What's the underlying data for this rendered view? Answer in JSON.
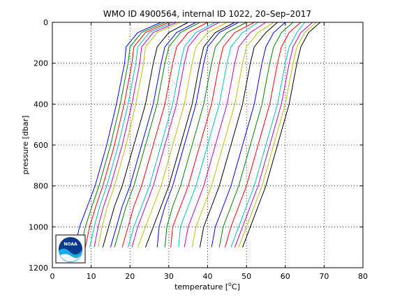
{
  "chart_data": {
    "type": "line",
    "title": "WMO ID 4900564, internal ID 1022, 20–Sep–2017",
    "xlabel": "temperature [°C]",
    "ylabel": "pressure [dbar]",
    "xlim": [
      0,
      80
    ],
    "ylim": [
      1200,
      0
    ],
    "y_reversed": true,
    "grid": true,
    "x_ticks": [
      0,
      10,
      20,
      30,
      40,
      50,
      60,
      70,
      80
    ],
    "y_ticks": [
      0,
      200,
      400,
      600,
      800,
      1000,
      1200
    ],
    "x_tick_labels": [
      "0",
      "10",
      "20",
      "30",
      "40",
      "50",
      "60",
      "70",
      "80"
    ],
    "y_tick_labels": [
      "0",
      "200",
      "400",
      "600",
      "800",
      "1000",
      "1200"
    ],
    "logo_text": "NOAA",
    "series": [
      {
        "color": "#0000ff",
        "values": [
          [
            28,
            0
          ],
          [
            22,
            50
          ],
          [
            19,
            120
          ],
          [
            18.6,
            200
          ],
          [
            16.5,
            400
          ],
          [
            14,
            600
          ],
          [
            11,
            800
          ],
          [
            9,
            900
          ],
          [
            7,
            1000
          ],
          [
            5.8,
            1100
          ]
        ]
      },
      {
        "color": "#008000",
        "values": [
          [
            29,
            0
          ],
          [
            23,
            50
          ],
          [
            20,
            120
          ],
          [
            19.5,
            200
          ],
          [
            17.5,
            400
          ],
          [
            15,
            600
          ],
          [
            12,
            800
          ],
          [
            10.2,
            900
          ],
          [
            8.5,
            1000
          ],
          [
            7.3,
            1100
          ]
        ]
      },
      {
        "color": "#ff0000",
        "values": [
          [
            30,
            0
          ],
          [
            24,
            50
          ],
          [
            21,
            120
          ],
          [
            20.5,
            200
          ],
          [
            18.5,
            400
          ],
          [
            16,
            600
          ],
          [
            13,
            800
          ],
          [
            11.2,
            900
          ],
          [
            9.6,
            1000
          ],
          [
            8.5,
            1100
          ]
        ]
      },
      {
        "color": "#00bfbf",
        "values": [
          [
            31,
            0
          ],
          [
            25,
            50
          ],
          [
            22,
            120
          ],
          [
            21.5,
            200
          ],
          [
            19.5,
            400
          ],
          [
            17,
            600
          ],
          [
            14,
            800
          ],
          [
            12.2,
            900
          ],
          [
            10.8,
            1000
          ],
          [
            9.6,
            1100
          ]
        ]
      },
      {
        "color": "#bf00bf",
        "values": [
          [
            32,
            0
          ],
          [
            26,
            50
          ],
          [
            23,
            120
          ],
          [
            22.5,
            200
          ],
          [
            20.5,
            400
          ],
          [
            18,
            600
          ],
          [
            15,
            800
          ],
          [
            13.2,
            900
          ],
          [
            11.8,
            1000
          ],
          [
            10.8,
            1100
          ]
        ]
      },
      {
        "color": "#bfbf00",
        "values": [
          [
            33,
            0
          ],
          [
            27,
            50
          ],
          [
            24,
            120
          ],
          [
            23.5,
            200
          ],
          [
            21.5,
            400
          ],
          [
            19,
            600
          ],
          [
            16,
            800
          ],
          [
            14.2,
            900
          ],
          [
            12.8,
            1000
          ],
          [
            11.8,
            1100
          ]
        ]
      },
      {
        "color": "#000000",
        "values": [
          [
            35,
            0
          ],
          [
            30,
            50
          ],
          [
            27,
            120
          ],
          [
            26,
            200
          ],
          [
            24,
            400
          ],
          [
            21,
            600
          ],
          [
            18,
            800
          ],
          [
            16,
            900
          ],
          [
            14.5,
            1000
          ],
          [
            13,
            1100
          ]
        ]
      },
      {
        "color": "#0000ff",
        "values": [
          [
            37,
            0
          ],
          [
            32,
            50
          ],
          [
            29,
            120
          ],
          [
            28,
            200
          ],
          [
            26,
            400
          ],
          [
            23,
            600
          ],
          [
            20,
            800
          ],
          [
            18,
            900
          ],
          [
            16.5,
            1000
          ],
          [
            15,
            1100
          ]
        ]
      },
      {
        "color": "#008000",
        "values": [
          [
            38,
            0
          ],
          [
            33,
            50
          ],
          [
            30,
            120
          ],
          [
            29,
            200
          ],
          [
            27,
            400
          ],
          [
            24,
            600
          ],
          [
            21,
            800
          ],
          [
            19,
            900
          ],
          [
            17.5,
            1000
          ],
          [
            16,
            1100
          ]
        ]
      },
      {
        "color": "#ff0000",
        "values": [
          [
            40,
            0
          ],
          [
            35,
            50
          ],
          [
            32,
            120
          ],
          [
            31,
            200
          ],
          [
            29,
            400
          ],
          [
            26,
            600
          ],
          [
            23,
            800
          ],
          [
            21,
            900
          ],
          [
            19.5,
            1000
          ],
          [
            18,
            1100
          ]
        ]
      },
      {
        "color": "#00bfbf",
        "values": [
          [
            42,
            0
          ],
          [
            37,
            50
          ],
          [
            34,
            120
          ],
          [
            33,
            200
          ],
          [
            31,
            400
          ],
          [
            28,
            600
          ],
          [
            25,
            800
          ],
          [
            23,
            900
          ],
          [
            21,
            1000
          ],
          [
            19.5,
            1100
          ]
        ]
      },
      {
        "color": "#bf00bf",
        "values": [
          [
            43,
            0
          ],
          [
            38,
            50
          ],
          [
            35,
            120
          ],
          [
            34,
            200
          ],
          [
            32,
            400
          ],
          [
            29,
            600
          ],
          [
            26,
            800
          ],
          [
            24,
            900
          ],
          [
            22,
            1000
          ],
          [
            20.5,
            1100
          ]
        ]
      },
      {
        "color": "#bfbf00",
        "values": [
          [
            45,
            0
          ],
          [
            40,
            50
          ],
          [
            37,
            120
          ],
          [
            36,
            200
          ],
          [
            34,
            400
          ],
          [
            31,
            600
          ],
          [
            28,
            800
          ],
          [
            26,
            900
          ],
          [
            24,
            1000
          ],
          [
            22,
            1100
          ]
        ]
      },
      {
        "color": "#000000",
        "values": [
          [
            47,
            0
          ],
          [
            42,
            50
          ],
          [
            39,
            120
          ],
          [
            38,
            200
          ],
          [
            36,
            400
          ],
          [
            33,
            600
          ],
          [
            30,
            800
          ],
          [
            28,
            900
          ],
          [
            26,
            1000
          ],
          [
            24,
            1100
          ]
        ]
      },
      {
        "color": "#0000ff",
        "values": [
          [
            48,
            0
          ],
          [
            43,
            50
          ],
          [
            40,
            120
          ],
          [
            39,
            200
          ],
          [
            37,
            400
          ],
          [
            34,
            600
          ],
          [
            31,
            800
          ],
          [
            29,
            900
          ],
          [
            27.5,
            1000
          ],
          [
            27,
            1100
          ]
        ]
      },
      {
        "color": "#008000",
        "values": [
          [
            50,
            0
          ],
          [
            45,
            50
          ],
          [
            42,
            120
          ],
          [
            41,
            200
          ],
          [
            39,
            400
          ],
          [
            36,
            600
          ],
          [
            33,
            800
          ],
          [
            31,
            900
          ],
          [
            29.5,
            1000
          ],
          [
            29,
            1100
          ]
        ]
      },
      {
        "color": "#ff0000",
        "values": [
          [
            52,
            0
          ],
          [
            47,
            50
          ],
          [
            44,
            120
          ],
          [
            43,
            200
          ],
          [
            41,
            400
          ],
          [
            38,
            600
          ],
          [
            35,
            800
          ],
          [
            33,
            900
          ],
          [
            31,
            1000
          ],
          [
            30.5,
            1100
          ]
        ]
      },
      {
        "color": "#00bfbf",
        "values": [
          [
            53,
            0
          ],
          [
            49,
            50
          ],
          [
            46,
            120
          ],
          [
            45,
            200
          ],
          [
            43,
            400
          ],
          [
            40,
            600
          ],
          [
            37,
            800
          ],
          [
            35,
            900
          ],
          [
            33,
            1000
          ],
          [
            32.5,
            1100
          ]
        ]
      },
      {
        "color": "#bf00bf",
        "values": [
          [
            55,
            0
          ],
          [
            51,
            50
          ],
          [
            48,
            120
          ],
          [
            47,
            200
          ],
          [
            45,
            400
          ],
          [
            42,
            600
          ],
          [
            39,
            800
          ],
          [
            37,
            900
          ],
          [
            35,
            1000
          ],
          [
            34,
            1100
          ]
        ]
      },
      {
        "color": "#bfbf00",
        "values": [
          [
            57,
            0
          ],
          [
            53,
            50
          ],
          [
            50,
            120
          ],
          [
            49,
            200
          ],
          [
            47,
            400
          ],
          [
            44,
            600
          ],
          [
            41,
            800
          ],
          [
            39,
            900
          ],
          [
            37,
            1000
          ],
          [
            36,
            1100
          ]
        ]
      },
      {
        "color": "#000000",
        "values": [
          [
            58,
            0
          ],
          [
            55,
            50
          ],
          [
            52,
            120
          ],
          [
            51,
            200
          ],
          [
            49,
            400
          ],
          [
            46,
            600
          ],
          [
            43,
            800
          ],
          [
            41,
            900
          ],
          [
            39,
            1000
          ],
          [
            38,
            1100
          ]
        ]
      },
      {
        "color": "#0000ff",
        "values": [
          [
            60,
            0
          ],
          [
            57,
            50
          ],
          [
            55,
            120
          ],
          [
            54,
            200
          ],
          [
            52,
            400
          ],
          [
            49,
            600
          ],
          [
            46,
            800
          ],
          [
            44,
            900
          ],
          [
            42,
            1000
          ],
          [
            41,
            1100
          ]
        ]
      },
      {
        "color": "#008000",
        "values": [
          [
            62,
            0
          ],
          [
            59,
            50
          ],
          [
            57,
            120
          ],
          [
            56,
            200
          ],
          [
            54,
            400
          ],
          [
            51,
            600
          ],
          [
            48,
            800
          ],
          [
            46,
            900
          ],
          [
            44,
            1000
          ],
          [
            43,
            1100
          ]
        ]
      },
      {
        "color": "#ff0000",
        "values": [
          [
            64,
            0
          ],
          [
            61,
            50
          ],
          [
            59,
            120
          ],
          [
            58,
            200
          ],
          [
            56,
            400
          ],
          [
            53,
            600
          ],
          [
            50,
            800
          ],
          [
            48,
            900
          ],
          [
            46,
            1000
          ],
          [
            44.5,
            1100
          ]
        ]
      },
      {
        "color": "#00bfbf",
        "values": [
          [
            65,
            0
          ],
          [
            63,
            50
          ],
          [
            61,
            120
          ],
          [
            60,
            200
          ],
          [
            58,
            400
          ],
          [
            55,
            600
          ],
          [
            52,
            800
          ],
          [
            50,
            900
          ],
          [
            48,
            1000
          ],
          [
            46,
            1100
          ]
        ]
      },
      {
        "color": "#bf00bf",
        "values": [
          [
            67,
            0
          ],
          [
            64,
            50
          ],
          [
            62,
            120
          ],
          [
            61,
            200
          ],
          [
            59,
            400
          ],
          [
            56,
            600
          ],
          [
            53,
            800
          ],
          [
            51,
            900
          ],
          [
            49,
            1000
          ],
          [
            47,
            1100
          ]
        ]
      },
      {
        "color": "#bfbf00",
        "values": [
          [
            68,
            0
          ],
          [
            65,
            50
          ],
          [
            63,
            120
          ],
          [
            62,
            200
          ],
          [
            60,
            400
          ],
          [
            57,
            600
          ],
          [
            54,
            800
          ],
          [
            52,
            900
          ],
          [
            50,
            1000
          ],
          [
            48,
            1100
          ]
        ]
      },
      {
        "color": "#000000",
        "values": [
          [
            69,
            0
          ],
          [
            66,
            50
          ],
          [
            64,
            120
          ],
          [
            63,
            200
          ],
          [
            61,
            400
          ],
          [
            58,
            600
          ],
          [
            55,
            800
          ],
          [
            53,
            900
          ],
          [
            51,
            1000
          ],
          [
            49,
            1100
          ]
        ]
      }
    ]
  }
}
